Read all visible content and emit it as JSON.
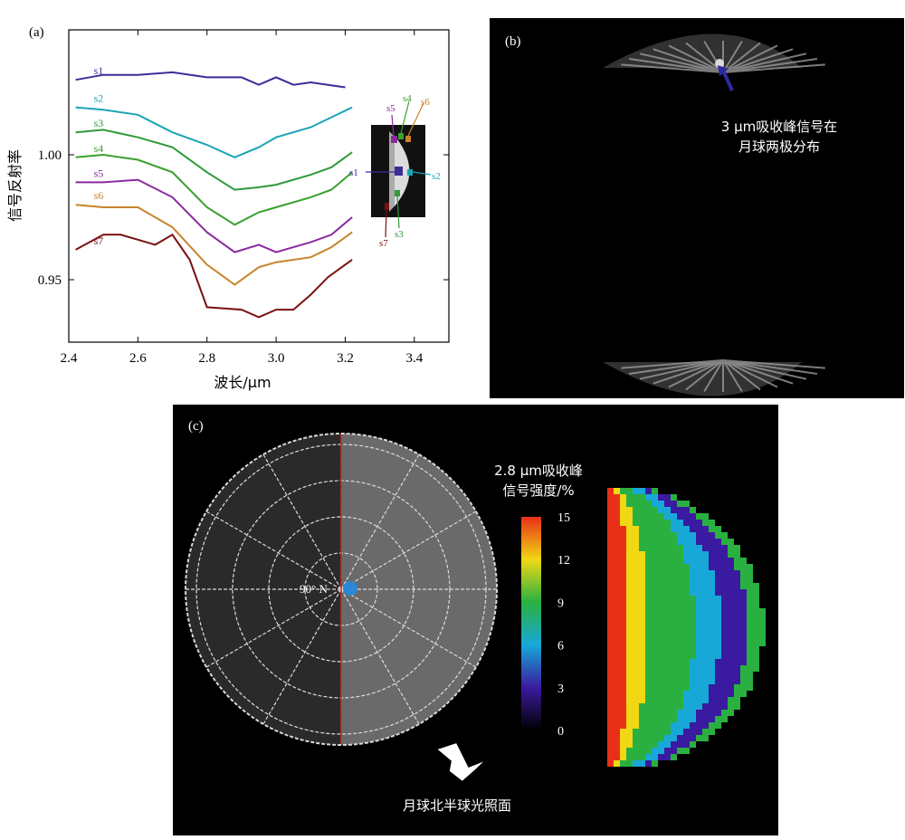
{
  "panel_a": {
    "label": "(a)",
    "chart_data": {
      "type": "line",
      "xlabel": "波长/μm",
      "ylabel": "信号反射率",
      "xlim": [
        2.4,
        3.5
      ],
      "ylim": [
        0.925,
        1.05
      ],
      "xticks": [
        "2.4",
        "2.6",
        "2.8",
        "3.0",
        "3.2",
        "3.4"
      ],
      "yticks": [
        "0.95",
        "1.00"
      ],
      "grid": false,
      "series": [
        {
          "name": "s1",
          "color": "#3a2d9a",
          "x": [
            2.42,
            2.5,
            2.6,
            2.7,
            2.8,
            2.9,
            2.95,
            3.0,
            3.05,
            3.1,
            3.2
          ],
          "y": [
            1.03,
            1.032,
            1.032,
            1.033,
            1.031,
            1.031,
            1.028,
            1.031,
            1.028,
            1.029,
            1.027
          ]
        },
        {
          "name": "s2",
          "color": "#1aa5b5",
          "x": [
            2.42,
            2.5,
            2.6,
            2.7,
            2.8,
            2.88,
            2.95,
            3.0,
            3.1,
            3.16,
            3.22
          ],
          "y": [
            1.019,
            1.018,
            1.016,
            1.009,
            1.004,
            0.999,
            1.003,
            1.007,
            1.011,
            1.015,
            1.019
          ]
        },
        {
          "name": "s3",
          "color": "#2e9a3a",
          "x": [
            2.42,
            2.5,
            2.6,
            2.7,
            2.8,
            2.88,
            2.95,
            3.0,
            3.1,
            3.16,
            3.22
          ],
          "y": [
            1.009,
            1.01,
            1.007,
            1.003,
            0.993,
            0.986,
            0.987,
            0.988,
            0.992,
            0.995,
            1.001
          ]
        },
        {
          "name": "s4",
          "color": "#3aa02f",
          "x": [
            2.42,
            2.5,
            2.6,
            2.7,
            2.8,
            2.88,
            2.95,
            3.0,
            3.1,
            3.16,
            3.22
          ],
          "y": [
            0.999,
            1.0,
            0.998,
            0.993,
            0.979,
            0.972,
            0.977,
            0.979,
            0.983,
            0.986,
            0.993
          ]
        },
        {
          "name": "s5",
          "color": "#8a2aa0",
          "x": [
            2.42,
            2.5,
            2.6,
            2.7,
            2.8,
            2.88,
            2.95,
            3.0,
            3.1,
            3.16,
            3.22
          ],
          "y": [
            0.989,
            0.989,
            0.99,
            0.983,
            0.969,
            0.961,
            0.964,
            0.961,
            0.965,
            0.968,
            0.975
          ]
        },
        {
          "name": "s6",
          "color": "#c8832a",
          "x": [
            2.42,
            2.5,
            2.6,
            2.7,
            2.8,
            2.88,
            2.95,
            3.0,
            3.1,
            3.16,
            3.22
          ],
          "y": [
            0.98,
            0.979,
            0.979,
            0.971,
            0.956,
            0.948,
            0.955,
            0.957,
            0.959,
            0.963,
            0.969
          ]
        },
        {
          "name": "s7",
          "color": "#7a1010",
          "x": [
            2.42,
            2.5,
            2.55,
            2.6,
            2.65,
            2.7,
            2.75,
            2.8,
            2.9,
            2.95,
            3.0,
            3.05,
            3.1,
            3.15,
            3.22
          ],
          "y": [
            0.962,
            0.968,
            0.968,
            0.966,
            0.964,
            0.968,
            0.958,
            0.939,
            0.938,
            0.935,
            0.938,
            0.938,
            0.944,
            0.951,
            0.958
          ]
        }
      ]
    },
    "inset": {
      "labels": [
        "s5",
        "s4",
        "s6",
        "s1",
        "s2",
        "s3",
        "s7"
      ]
    }
  },
  "panel_b": {
    "label": "(b)",
    "annotation_line1": "3 μm吸收峰信号在",
    "annotation_line2": "月球两极分布"
  },
  "panel_c": {
    "label": "(c)",
    "pole_label": "90° N",
    "arrow_caption": "月球北半球光照面",
    "colorbar_title_line1": "2.8 μm吸收峰",
    "colorbar_title_line2": "信号强度/%",
    "colorbar_ticks": [
      "15",
      "12",
      "9",
      "6",
      "3",
      "0"
    ],
    "colorbar_colors": [
      "#e83018",
      "#f0d814",
      "#2ab040",
      "#18a8d8",
      "#3a1aa0",
      "#000000"
    ]
  }
}
